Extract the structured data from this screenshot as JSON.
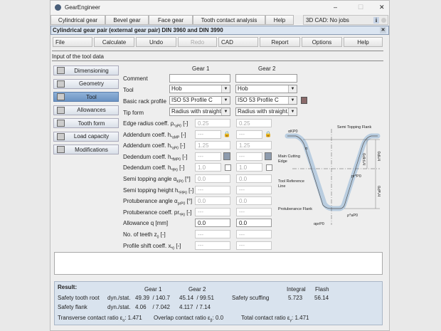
{
  "window": {
    "title": "GearEngineer",
    "minimize": "–",
    "maximize": "☐",
    "close": "✕"
  },
  "menu": {
    "tabs": [
      "Cylindrical gear",
      "Bevel gear",
      "Face gear",
      "Tooth contact analysis",
      "Help"
    ],
    "cad_status": "3D CAD: No jobs",
    "info_icon": "i"
  },
  "doc": {
    "title": "Cylindrical gear pair (external gear pair) DIN 3960 and DIN 3990",
    "close": "✕"
  },
  "toolbar": {
    "file": "File",
    "calculate": "Calculate",
    "undo": "Undo",
    "redo": "Redo",
    "cad": "CAD",
    "report": "Report",
    "options": "Options",
    "help": "Help"
  },
  "section": "Input of the tool data",
  "sidebar": [
    {
      "label": "Dimensioning",
      "icon": "calculator-icon"
    },
    {
      "label": "Geometry",
      "icon": "grid-icon"
    },
    {
      "label": "Tool",
      "icon": "gear-tool-icon",
      "active": true
    },
    {
      "label": "Allowances",
      "icon": "allowances-icon"
    },
    {
      "label": "Tooth form",
      "icon": "tooth-form-icon"
    },
    {
      "label": "Load capacity",
      "icon": "load-icon"
    },
    {
      "label": "Modifications",
      "icon": "modifications-icon"
    }
  ],
  "form": {
    "gear1": "Gear 1",
    "gear2": "Gear 2",
    "comment": {
      "label": "Comment",
      "g1": "",
      "g2": ""
    },
    "tool": {
      "label": "Tool",
      "g1": "Hob",
      "g2": "Hob"
    },
    "rack": {
      "label": "Basic rack profile",
      "g1": "ISO 53 Profile C",
      "g2": "ISO 53 Profile C"
    },
    "tip": {
      "label": "Tip form",
      "g1": "Radius with straight...",
      "g2": "Radius with straight..."
    },
    "rows": [
      {
        "label": "Edge radius coeff. ρ",
        "sub": "*aP0",
        "unit": " [-]",
        "g1": "0.25",
        "g2": "0.25"
      },
      {
        "label": "Addendum coeff. h",
        "sub": "*aMP",
        "unit": " [-]",
        "g1": "---",
        "g2": "---",
        "lock": true
      },
      {
        "label": "Addendum coeff. h",
        "sub": "*aP0",
        "unit": " [-]",
        "g1": "1.25",
        "g2": "1.25"
      },
      {
        "label": "Dedendum coeff. h",
        "sub": "*fMP0",
        "unit": " [-]",
        "g1": "---",
        "g2": "---",
        "calc": true
      },
      {
        "label": "Dedendum coeff. h",
        "sub": "*fP0",
        "unit": " [-]",
        "g1": "1.0",
        "g2": "1.0",
        "check": true
      },
      {
        "label": "Semi topping angle α",
        "sub": "KP0",
        "unit": " [°]",
        "g1": "0.0",
        "g2": "0.0"
      },
      {
        "label": "Semi topping height h",
        "sub": "*FfP0",
        "unit": " [-]",
        "g1": "---",
        "g2": "---"
      },
      {
        "label": "Protuberance angle α",
        "sub": "prP0",
        "unit": " [°]",
        "g1": "0.0",
        "g2": "0.0"
      },
      {
        "label": "Protuberance coeff. pr",
        "sub": "*P0",
        "unit": " [-]",
        "g1": "---",
        "g2": "---"
      },
      {
        "label": "Allowance q [mm]",
        "sub": "",
        "unit": "",
        "g1": "0.0",
        "g2": "0.0",
        "enabled": true
      },
      {
        "label": "No. of teeth z",
        "sub": "0",
        "unit": " [-]",
        "g1": "---",
        "g2": "---"
      },
      {
        "label": "Profile shift coeff. x",
        "sub": "*0",
        "unit": " [-]",
        "g1": "---",
        "g2": "---"
      }
    ]
  },
  "diagram": {
    "alpha_kp0": "αKP0",
    "alpha": "α",
    "semi_topping": "Semi Topping Flank",
    "main_cutting": "Main Cutting",
    "edge": "Edge",
    "tool_ref": "Tool Reference",
    "line": "Line",
    "protuberance": "Protuberance Flank",
    "alpha_prp0": "αprP0",
    "rho_ap0": "ρ*aP0",
    "pr_p0": "pr*P0",
    "h_ffp0": "h*FfP0",
    "h_fp0": "h*fP0",
    "h_ap0": "h*aP0"
  },
  "result": {
    "title": "Result:",
    "gear1": "Gear 1",
    "gear2": "Gear 2",
    "integral": "Integral",
    "flash": "Flash",
    "root": {
      "label": "Safety tooth root",
      "mode": "dyn./stat.",
      "g1": "49.39  / 140.7",
      "g2": "45.14  / 99.51"
    },
    "flank": {
      "label": "Safety flank",
      "mode": "dyn./stat.",
      "g1": "4.06    / 7.042",
      "g2": "4.117  / 7.14"
    },
    "scuffing": {
      "label": "Safety scuffing",
      "integral": "5.723",
      "flash": "56.14"
    },
    "transverse": {
      "label": "Transverse contact ratio ε",
      "sub": "α",
      "value": ": 1.471"
    },
    "overlap": {
      "label": "Overlap contact ratio ε",
      "sub": "β",
      "value": ": 0.0"
    },
    "total": {
      "label": "Total contact ratio ε",
      "sub": "γ",
      "value": ": 1.471"
    }
  },
  "colors": {
    "active_tab": "#6b93c3",
    "result_bg": "#d9e3ee",
    "doc_title_bg": "#dbe5f1",
    "profile": "#b9cde0"
  }
}
